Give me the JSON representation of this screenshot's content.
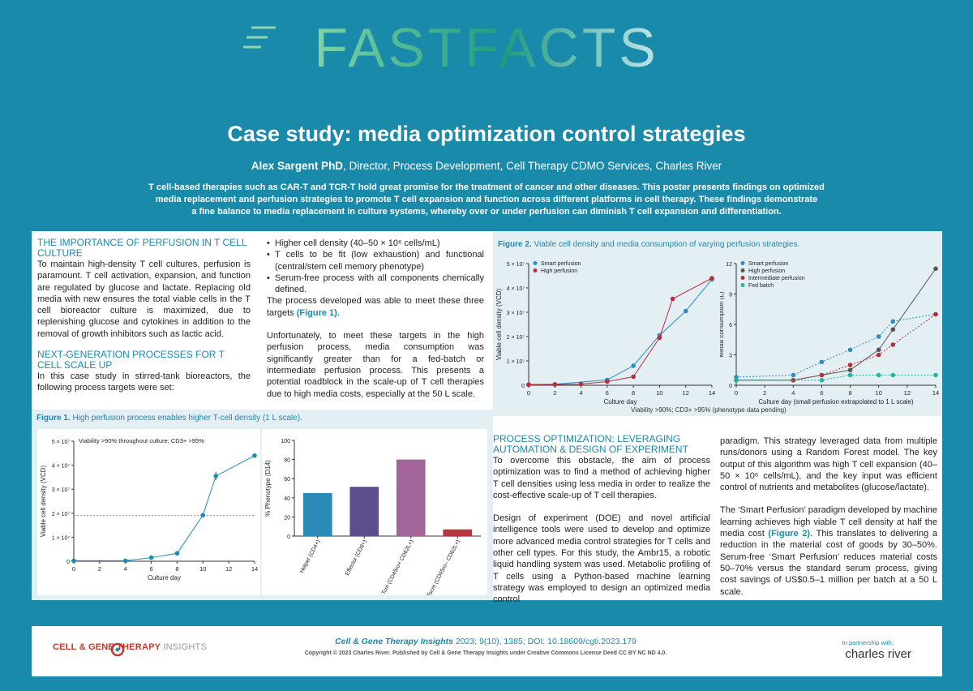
{
  "brand": {
    "logo_text": "FASTFACTS"
  },
  "header": {
    "title": "Case study: media optimization control strategies",
    "author_name": "Alex Sargent PhD",
    "author_role": ", Director, Process Development, Cell Therapy CDMO Services, Charles River",
    "intro_line1": "T cell-based therapies such as CAR-T and TCR-T hold great promise for the treatment of cancer and other diseases. This poster presents findings on optimized",
    "intro_line2": "media replacement and perfusion strategies to promote T cell expansion and function across different platforms in cell therapy. These findings demonstrate",
    "intro_line3": "a fine balance to media replacement in culture systems, whereby over or under perfusion can diminish T cell expansion and differentiation."
  },
  "col1": {
    "h1": "The importance of perfusion in T cell culture",
    "p1": "To maintain high-density T cell cultures, perfusion is paramount. T cell activation, expansion, and function are regulated by glucose and lactate. Replacing old media with new ensures the total viable cells in the T cell bioreactor culture is maximized, due to replenishing glucose and cytokines in addition to the removal of growth inhibitors such as lactic acid.",
    "h2": "Next-generation processes for T cell scale up",
    "p2": "In this case study in stirred-tank bioreactors, the following process targets were set:"
  },
  "col2": {
    "b1": "Higher cell density (40–50 × 10⁶ cells/mL)",
    "b2": "T cells to be fit (low exhaustion) and functional (central/stem cell memory phenotype)",
    "b3": "Serum-free process with all components chemically defined.",
    "p1a": "The process developed was able to meet these three targets ",
    "p1ref": "(Figure 1)",
    "p1b": ".",
    "p2": "Unfortunately, to meet these targets in the high perfusion process, media consumption was significantly greater than for a fed-batch or intermediate perfusion process. This presents a potential roadblock in the scale-up of T cell therapies due to high media costs, especially at the 50 L scale."
  },
  "col3": {
    "h1": "Process optimization: leveraging automation & design of experiment",
    "p1": "To overcome this obstacle, the aim of process optimization was to find a method of achieving higher T cell densities using less media in order to realize the cost-effective scale-up of T cell therapies.",
    "p2": "Design of experiment (DOE) and novel artificial intelligence tools were used to develop and optimize more advanced media control strategies for T cells and other cell types. For this study, the Ambr15, a robotic liquid handling system was used. Metabolic profiling of T cells using a Python-based machine learning strategy was employed to design an optimized media control"
  },
  "col4": {
    "p1": "paradigm. This strategy leveraged data from multiple runs/donors using a Random Forest model. The key output of this algorithm was high T cell expansion (40–50 × 10⁶ cells/mL), and the key input was efficient control of nutrients and metabolites (glucose/lactate).",
    "p2a": "The ‘Smart Perfusion’ paradigm developed by machine learning achieves high viable T cell density at half the media cost ",
    "p2ref": "(Figure 2)",
    "p2b": ". This translates to delivering a reduction in the material cost of goods by 30–50%. Serum-free ‘Smart Perfusion’ reduces material costs 50–70% versus the standard serum process, giving cost savings of US$0.5–1 million per batch at a 50 L scale."
  },
  "figure1": {
    "label": "Figure 1.",
    "caption": " High perfusion process enables higher T-cell density (1 L scale)."
  },
  "figure2": {
    "label": "Figure 2.",
    "caption": " Viable cell density and media consumption of varying perfusion strategies.",
    "note": "Viability >90%; CD3+ >95% (phenotype data pending)"
  },
  "chart_data": [
    {
      "id": "fig1a",
      "type": "line",
      "xlabel": "Culture day",
      "ylabel": "Viable cell density (VCD)",
      "annotation": "Viability >90% throughout culture; CD3+ >95%",
      "xlim": [
        0,
        14
      ],
      "xticks": [
        0,
        2,
        4,
        6,
        8,
        10,
        12,
        14
      ],
      "ylim": [
        0,
        5
      ],
      "yticks": [
        "0",
        "1 × 10⁷",
        "2 × 10⁷",
        "3 × 10⁷",
        "4 × 10⁷",
        "5 × 10⁷"
      ],
      "reference_line": 1.9,
      "color": "#1c8cb1",
      "x": [
        0,
        4,
        6,
        8,
        10,
        11,
        14
      ],
      "y": [
        0.02,
        0.02,
        0.15,
        0.33,
        1.92,
        3.55,
        4.4
      ],
      "error": [
        0,
        0,
        0,
        0,
        0,
        0.18,
        0
      ]
    },
    {
      "id": "fig1b",
      "type": "bar",
      "ylabel": "% Phenotype (D14)",
      "ylim": [
        0,
        100
      ],
      "yticks": [
        0,
        20,
        40,
        60,
        80,
        100
      ],
      "categories": [
        "Helper (CD4+)",
        "Effector (CD8+)",
        "Tcm (CD45ro+ CD62L+)",
        "Tscm (CD45ro– CD62L+)"
      ],
      "values": [
        45,
        51.5,
        80,
        7
      ],
      "colors": [
        "#2a8ab5",
        "#5d4d8c",
        "#a3649a",
        "#b7353f"
      ]
    },
    {
      "id": "fig2a",
      "type": "line",
      "xlabel": "Culture day",
      "ylabel": "Viable cell density (VCD)",
      "xlim": [
        0,
        14
      ],
      "xticks": [
        0,
        2,
        4,
        6,
        8,
        10,
        12,
        14
      ],
      "ylim": [
        0,
        5
      ],
      "yticks": [
        "0",
        "1 × 10⁷",
        "2 × 10⁷",
        "3 × 10⁷",
        "4 × 10⁷",
        "5 × 10⁷"
      ],
      "series": [
        {
          "name": "Smart perfusion",
          "color": "#2a8fc0",
          "x": [
            0,
            2,
            6,
            8,
            10,
            12,
            14
          ],
          "y": [
            0.03,
            0.04,
            0.22,
            0.8,
            2.05,
            3.05,
            4.35
          ]
        },
        {
          "name": "High perfusion",
          "color": "#b82f3a",
          "x": [
            0,
            2,
            4,
            6,
            8,
            10,
            11,
            14
          ],
          "y": [
            0.02,
            0.03,
            0.05,
            0.15,
            0.35,
            1.95,
            3.55,
            4.4
          ]
        }
      ]
    },
    {
      "id": "fig2b",
      "type": "line",
      "xlabel": "Culture day (small perfusion extrapolated to 1 L scale)",
      "ylabel": "Media consumption (L)",
      "xlim": [
        0,
        14
      ],
      "xticks": [
        0,
        2,
        4,
        6,
        8,
        10,
        12,
        14
      ],
      "ylim": [
        0,
        12
      ],
      "yticks": [
        0,
        3,
        6,
        9,
        12
      ],
      "series": [
        {
          "name": "Smart perfusion",
          "color": "#2a8fc0",
          "dashed": true,
          "x": [
            0,
            4,
            6,
            8,
            10,
            11,
            14
          ],
          "y": [
            0.8,
            1.0,
            2.3,
            3.5,
            4.8,
            6.3,
            7.0
          ]
        },
        {
          "name": "High perfusion",
          "color": "#555555",
          "dashed": false,
          "x": [
            0,
            4,
            6,
            8,
            10,
            11,
            14
          ],
          "y": [
            0.5,
            0.5,
            1.0,
            1.5,
            3.5,
            5.5,
            11.5
          ]
        },
        {
          "name": "Intermediate perfusion",
          "color": "#b82f3a",
          "dashed": true,
          "x": [
            0,
            4,
            6,
            8,
            10,
            11,
            14
          ],
          "y": [
            0.5,
            0.5,
            1.0,
            2.0,
            3.0,
            4.0,
            7.0
          ]
        },
        {
          "name": "Fed batch",
          "color": "#26b59a",
          "dashed": true,
          "x": [
            0,
            6,
            8,
            10,
            11,
            14
          ],
          "y": [
            0.5,
            0.5,
            1.0,
            1.0,
            1.0,
            1.0
          ]
        }
      ]
    }
  ],
  "footer": {
    "journal_logo_main": "CELL & GENE THERAPY",
    "journal_logo_sub": " INSIGHTS",
    "citation_journal": "Cell & Gene Therapy Insights",
    "citation_rest": " 2023; 9(10), 1385; DOI: 10.18609/cgti.2023.179",
    "copyright": "Copyright © 2023 Charles River. Published by Cell & Gene Therapy Insights under Creative Commons License Deed CC BY NC ND 4.0.",
    "partner_label": "In partnership with:",
    "partner_name": "charles river"
  }
}
